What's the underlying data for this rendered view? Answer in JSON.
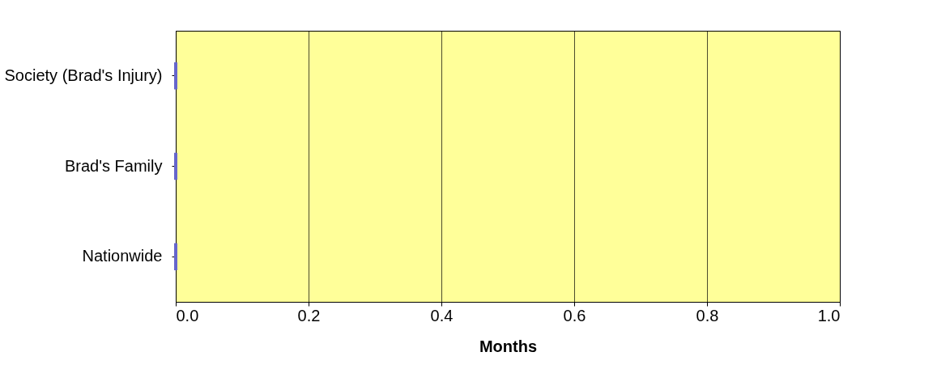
{
  "chart_data": {
    "type": "bar",
    "orientation": "horizontal",
    "xlabel": "Months",
    "categories": [
      "Society (Brad's Injury)",
      "Brad's Family",
      "Nationwide"
    ],
    "values": [
      0,
      0,
      0
    ],
    "color": "#6666cc",
    "xlim": [
      0,
      1
    ],
    "xticks": [
      {
        "value": 0,
        "label": "0.0"
      },
      {
        "value": 0.2,
        "label": "0.2"
      },
      {
        "value": 0.4,
        "label": "0.4"
      },
      {
        "value": 0.6,
        "label": "0.6"
      },
      {
        "value": 0.8,
        "label": "0.8"
      },
      {
        "value": 1,
        "label": "1.0"
      }
    ],
    "grid": "x"
  }
}
